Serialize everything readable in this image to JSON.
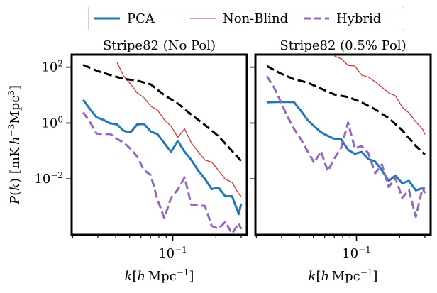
{
  "legend": {
    "entries": [
      {
        "label": "PCA",
        "color": "#1f77b4",
        "style": "solid",
        "width": 3
      },
      {
        "label": "Non-Blind",
        "color": "#d62728",
        "style": "solid",
        "width": 1
      },
      {
        "label": "Hybrid",
        "color": "#9467bd",
        "style": "dashed",
        "width": 3
      }
    ]
  },
  "axes_text": {
    "ylabel": "P(k) [mK h⁻³Mpc³]",
    "xlabel": "k[h Mpc⁻¹]",
    "yticks": [
      "10²",
      "10⁰",
      "10⁻²"
    ],
    "xtick": "10⁻¹"
  },
  "chart_data": [
    {
      "type": "line",
      "title": "Stripe82 (No Pol)",
      "xlabel": "k[h Mpc⁻¹]",
      "ylabel": "P(k) [mK h⁻³Mpc³]",
      "xscale": "log",
      "yscale": "log",
      "xlim": [
        0.0197,
        0.329
      ],
      "ylim": [
        0.0001,
        280
      ],
      "series": [
        {
          "name": "PCA",
          "color": "#1f77b4",
          "style": "solid",
          "x": [
            0.0237,
            0.0264,
            0.0294,
            0.0328,
            0.0366,
            0.0408,
            0.0455,
            0.0507,
            0.0565,
            0.063,
            0.0702,
            0.0783,
            0.0873,
            0.0973,
            0.1085,
            0.121,
            0.1349,
            0.1504,
            0.1677,
            0.187,
            0.2085,
            0.2325,
            0.2592,
            0.289,
            0.3
          ],
          "y": [
            6.8,
            3.2,
            1.6,
            1.3,
            0.97,
            0.89,
            0.53,
            0.46,
            0.89,
            0.92,
            0.5,
            0.4,
            0.19,
            0.094,
            0.23,
            0.094,
            0.047,
            0.02,
            0.01,
            0.0043,
            0.0049,
            0.0024,
            0.0024,
            0.00055,
            0.0013
          ]
        },
        {
          "name": "Non-Blind",
          "color": "#d62728",
          "style": "solid",
          "x": [
            0.0408,
            0.0455,
            0.0507,
            0.0565,
            0.063,
            0.0702,
            0.0783,
            0.0873,
            0.0973,
            0.1085,
            0.121,
            0.1349,
            0.1504,
            0.1677,
            0.187,
            0.2085,
            0.2325,
            0.2592,
            0.289,
            0.3
          ],
          "y": [
            150,
            47,
            25,
            12,
            8,
            4,
            2.9,
            1.3,
            0.76,
            0.31,
            0.62,
            0.19,
            0.094,
            0.047,
            0.04,
            0.02,
            0.0098,
            0.0076,
            0.0029,
            0.0024
          ]
        },
        {
          "name": "Hybrid",
          "color": "#9467bd",
          "style": "dashed",
          "x": [
            0.0237,
            0.0264,
            0.0294,
            0.0328,
            0.0366,
            0.0408,
            0.0455,
            0.0507,
            0.0565,
            0.063,
            0.0702,
            0.0783,
            0.0873,
            0.0973,
            0.1085,
            0.121,
            0.1349,
            0.1504,
            0.1677,
            0.187,
            0.2085,
            0.2325,
            0.2592,
            0.289,
            0.3
          ],
          "y": [
            2.4,
            1.1,
            0.42,
            0.4,
            0.41,
            0.27,
            0.2,
            0.12,
            0.063,
            0.0205,
            0.0138,
            0.0018,
            0.0004,
            0.0021,
            0.0042,
            0.0113,
            0.00118,
            0.00114,
            0.00108,
            0.000209,
            0.000164,
            0.00029,
            0.000111,
            0.00026,
            0.00016
          ]
        },
        {
          "name": "",
          "color": "#000000",
          "style": "dashed",
          "x": [
            0.0237,
            0.0294,
            0.0366,
            0.0455,
            0.0565,
            0.0702,
            0.0873,
            0.1085,
            0.1349,
            0.1677,
            0.2085,
            0.2592,
            0.3
          ],
          "y": [
            120,
            75,
            52,
            38,
            33,
            24,
            10,
            5,
            2,
            0.85,
            0.34,
            0.1,
            0.044
          ]
        }
      ]
    },
    {
      "type": "line",
      "title": "Stripe82 (0.5% Pol)",
      "xlabel": "k[h Mpc⁻¹]",
      "xscale": "log",
      "yscale": "log",
      "xlim": [
        0.0197,
        0.329
      ],
      "ylim": [
        0.0001,
        280
      ],
      "series": [
        {
          "name": "PCA",
          "color": "#1f77b4",
          "style": "solid",
          "x": [
            0.0237,
            0.0294,
            0.0366,
            0.0408,
            0.0455,
            0.0507,
            0.0565,
            0.063,
            0.0702,
            0.0783,
            0.0873,
            0.0973,
            0.1085,
            0.121,
            0.1349,
            0.1504,
            0.1677,
            0.187,
            0.2085,
            0.2325,
            0.2592,
            0.289,
            0.3
          ],
          "y": [
            5.5,
            5.7,
            5.6,
            2.8,
            1.3,
            0.76,
            0.47,
            0.35,
            0.27,
            0.26,
            0.11,
            0.079,
            0.093,
            0.0515,
            0.042,
            0.0205,
            0.0085,
            0.0133,
            0.007,
            0.0085,
            0.0039,
            0.0047,
            0.0045
          ]
        },
        {
          "name": "Non-Blind",
          "color": "#d62728",
          "style": "solid",
          "x": [
            0.0702,
            0.0783,
            0.0873,
            0.0973,
            0.1085,
            0.121,
            0.1349,
            0.1504,
            0.1677,
            0.187,
            0.2085,
            0.2325,
            0.2592,
            0.289,
            0.3
          ],
          "y": [
            250,
            200,
            115,
            110,
            52,
            44,
            30,
            19,
            12,
            9.4,
            3.7,
            2.3,
            1.1,
            0.61,
            0.39
          ]
        },
        {
          "name": "Hybrid",
          "color": "#9467bd",
          "style": "dashed",
          "x": [
            0.0237,
            0.0264,
            0.0294,
            0.0328,
            0.0366,
            0.0408,
            0.0455,
            0.0507,
            0.0565,
            0.063,
            0.0702,
            0.0783,
            0.0873,
            0.0973,
            0.1085,
            0.121,
            0.1349,
            0.1504,
            0.1677,
            0.187,
            0.2085,
            0.2325,
            0.2592,
            0.289,
            0.3
          ],
          "y": [
            47,
            20,
            6.3,
            1.8,
            0.63,
            0.27,
            0.099,
            0.0375,
            0.099,
            0.019,
            0.0545,
            0.133,
            1.05,
            0.124,
            0.15,
            0.084,
            0.016,
            0.033,
            0.0051,
            0.011,
            0.0021,
            0.004,
            0.00044,
            0.0047,
            0.0031
          ]
        },
        {
          "name": "",
          "color": "#000000",
          "style": "dashed",
          "x": [
            0.0237,
            0.0294,
            0.0366,
            0.0455,
            0.0565,
            0.0702,
            0.0873,
            0.1085,
            0.1349,
            0.1677,
            0.2085,
            0.2592,
            0.3
          ],
          "y": [
            110,
            60,
            37,
            28,
            17,
            10.5,
            8.5,
            5.5,
            3.1,
            1.5,
            0.55,
            0.15,
            0.075
          ]
        }
      ]
    }
  ]
}
